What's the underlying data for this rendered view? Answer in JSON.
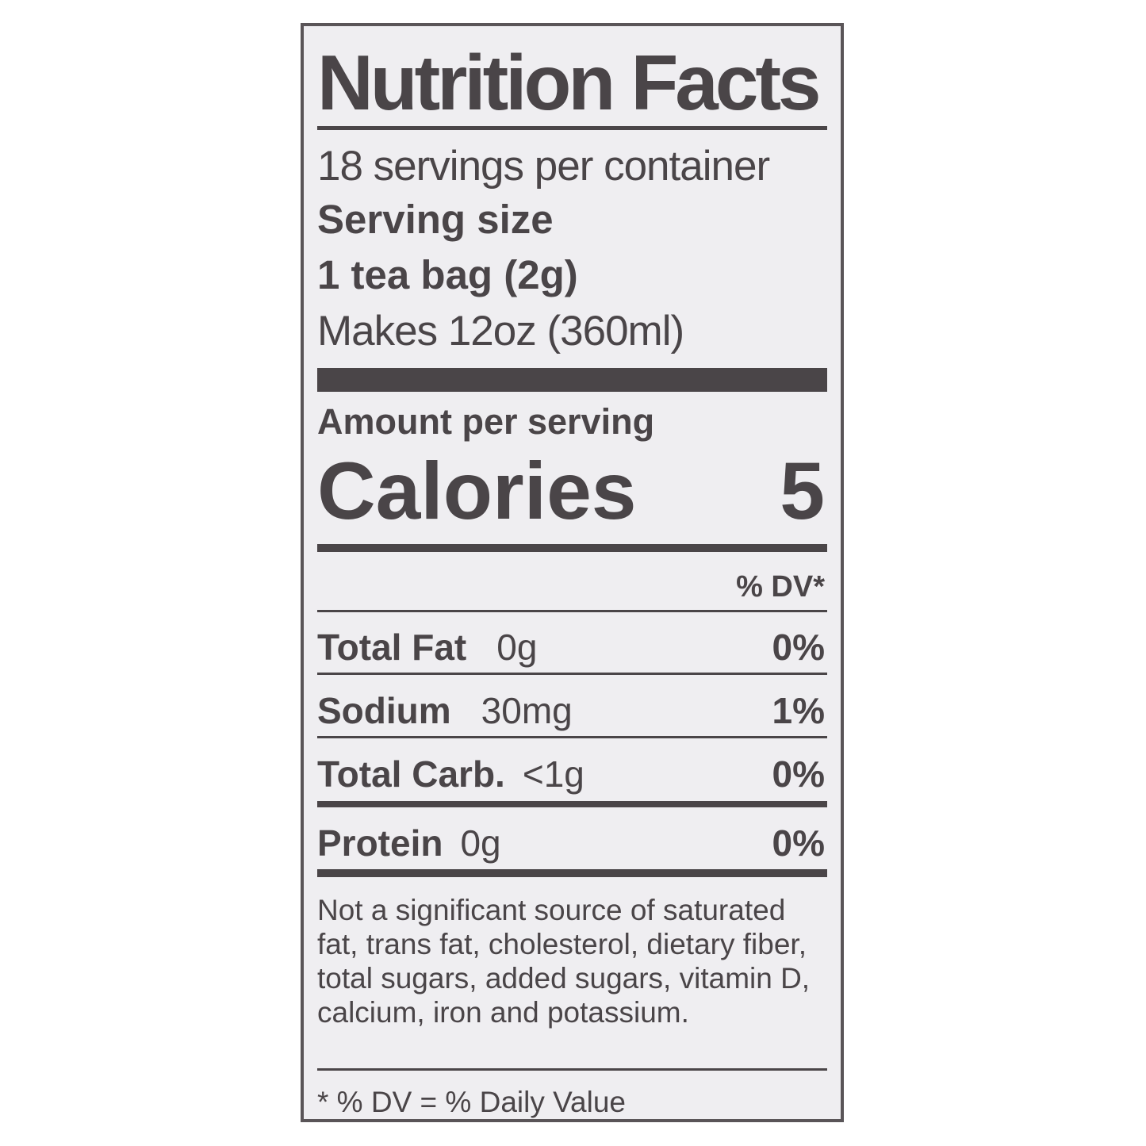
{
  "title": "Nutrition Facts",
  "servings_per_container": "18 servings per container",
  "serving_size_label": "Serving size",
  "serving_size_value": "1 tea bag (2g)",
  "makes": "Makes 12oz (360ml)",
  "amount_per_serving": "Amount per serving",
  "calories_label": "Calories",
  "calories_value": "5",
  "dv_header": "% DV*",
  "nutrients": [
    {
      "name": "Total Fat",
      "amount": "0g",
      "dv": "0%"
    },
    {
      "name": "Sodium",
      "amount": "30mg",
      "dv": "1%"
    },
    {
      "name": "Total Carb.",
      "amount": "<1g",
      "dv": "0%"
    },
    {
      "name": "Protein",
      "amount": "0g",
      "dv": "0%"
    }
  ],
  "footnote": "Not a significant source of saturated fat, trans fat, cholesterol, dietary fiber, total sugars, added sugars, vitamin D, calcium, iron and potassium.",
  "dv_note": "* % DV = % Daily Value",
  "colors": {
    "text": "#4a4548",
    "background": "#efeef1"
  }
}
